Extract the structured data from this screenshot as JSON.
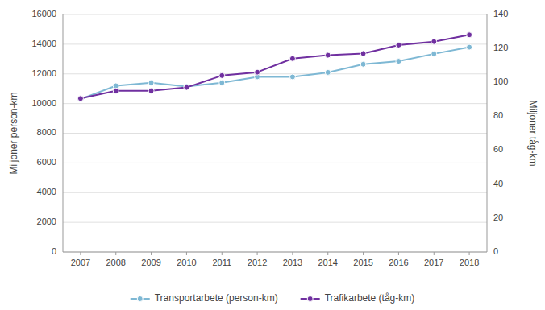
{
  "chart_data": {
    "type": "line",
    "x": [
      2007,
      2008,
      2009,
      2010,
      2011,
      2012,
      2013,
      2014,
      2015,
      2016,
      2017,
      2018
    ],
    "xlim": [
      2006.5,
      2018.5
    ],
    "xticks": [
      2007,
      2008,
      2009,
      2010,
      2011,
      2012,
      2013,
      2014,
      2015,
      2016,
      2017,
      2018
    ],
    "ylabel": "Miljoner person-km",
    "y2label": "Miljoner tåg-km",
    "ylim": [
      0,
      16000
    ],
    "yticks": [
      0,
      2000,
      4000,
      6000,
      8000,
      10000,
      12000,
      14000,
      16000
    ],
    "y2lim": [
      0,
      140
    ],
    "y2ticks": [
      0,
      20,
      40,
      60,
      80,
      100,
      120,
      140
    ],
    "grid": true,
    "legend": "bottom",
    "series": [
      {
        "name": "Transportarbete (person-km)",
        "color": "#7eb8d4",
        "marker": "circle",
        "values": [
          10300,
          11200,
          11400,
          11150,
          11400,
          11800,
          11800,
          12100,
          12650,
          12850,
          13350,
          13800
        ]
      },
      {
        "name": "Trafikarbete (tåg-km)",
        "color": "#7030a0",
        "marker": "circle",
        "axis": "y2",
        "values": [
          90.5,
          95,
          95,
          97,
          104,
          106,
          114,
          116,
          117,
          122,
          124,
          128
        ]
      }
    ]
  }
}
